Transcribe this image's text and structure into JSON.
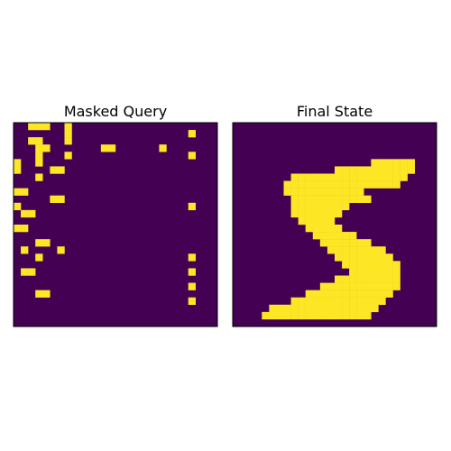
{
  "chart_data": [
    {
      "type": "heatmap",
      "title": "Masked Query",
      "rows": 28,
      "cols": 28,
      "colormap": "viridis",
      "colors": {
        "off": "#440154",
        "on": "#fde725"
      },
      "axis_ticks": false,
      "grid": [
        "0011100100000000000000000000",
        "0000000100000000000000001000",
        "0011000100000000000000000000",
        "0001100000001100000010000000",
        "0001000100000000000000001000",
        "1001000000000000000000000000",
        "1000011000000000000000000000",
        "0001000000000000000000000000",
        "0000000000000000000000000000",
        "1100000000000000000000000000",
        "0000011000000000000000000000",
        "1000000000000000000000001000",
        "0110000000000000000000000000",
        "0000000000000000000000000000",
        "1100000000000000000000000000",
        "0000000000000000000000000000",
        "0001100000000000000000000000",
        "0100001000000000000000000000",
        "0001000000000000000000001000",
        "0000000000000000000000000000",
        "0110000000000000000000001000",
        "0000000000000000000000000000",
        "0000000000000000000000001000",
        "0001100000000000000000000000",
        "0000000000000000000000001000",
        "0000000000000000000000000000",
        "0000000000000000000000000000",
        "0000000000000000000000000000"
      ]
    },
    {
      "type": "heatmap",
      "title": "Final State",
      "rows": 28,
      "cols": 28,
      "colormap": "viridis",
      "colors": {
        "off": "#440154",
        "on": "#fde725"
      },
      "axis_ticks": false,
      "grid": [
        "0000000000000000000000000000",
        "0000000000000000000000000000",
        "0000000000000000000000000000",
        "0000000000000000000000000000",
        "0000000000000000000000000000",
        "0000000000000000000111111000",
        "0000000000000011111111111000",
        "0000000011111111111111110000",
        "0000000111111111111111100000",
        "0000000111111111110000000000",
        "0000000011111111111000000000",
        "0000000011111111000000000000",
        "0000000011111110000000000000",
        "0000000001111100000000000000",
        "0000000000111110000000000000",
        "0000000000011111100000000000",
        "0000000000001111111000000000",
        "0000000000000111111110000000",
        "0000000000000011111111000000",
        "0000000000000001111111100000",
        "0000000000000000111111100000",
        "0000000000000011111111100000",
        "0000000000001111111111100000",
        "0000000000111111111111000000",
        "0000000011111111111110000000",
        "0000011111111111111100000000",
        "0000111111111111111000000000",
        "0000000000000000000000000000"
      ]
    }
  ]
}
